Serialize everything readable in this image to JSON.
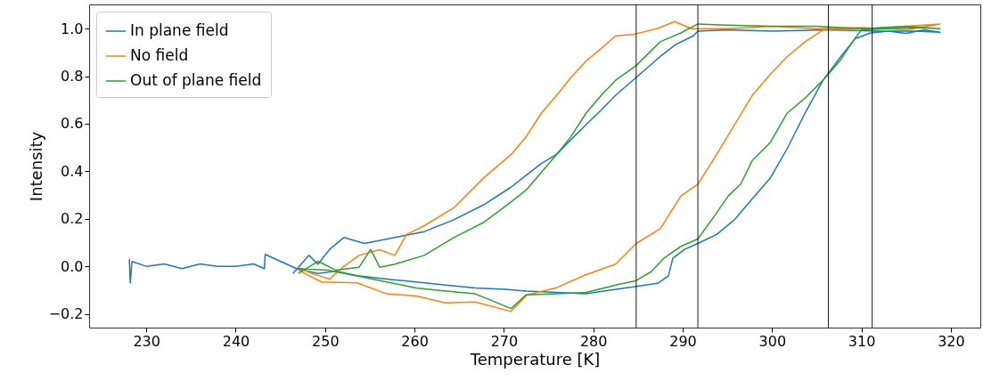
{
  "chart_data": {
    "type": "line",
    "xlabel": "Temperature [K]",
    "ylabel": "Intensity",
    "xlim": [
      223.6,
      323.3
    ],
    "ylim": [
      -0.258,
      1.102
    ],
    "xticks": [
      230,
      240,
      250,
      260,
      270,
      280,
      290,
      300,
      310,
      320
    ],
    "yticks": [
      {
        "value": -0.2,
        "label": "−0.2"
      },
      {
        "value": 0,
        "label": "0.0"
      },
      {
        "value": 0.2,
        "label": "0.2"
      },
      {
        "value": 0.4,
        "label": "0.4"
      },
      {
        "value": 0.6,
        "label": "0.6"
      },
      {
        "value": 0.8,
        "label": "0.8"
      },
      {
        "value": 1.0,
        "label": "1.0"
      }
    ],
    "grid": false,
    "legend": "top left",
    "line_style": "solid",
    "marker": "none",
    "ref_lines": [
      {
        "axis": "x",
        "value": 284.8,
        "color": "#000000"
      },
      {
        "axis": "x",
        "value": 291.7,
        "color": "#000000"
      },
      {
        "axis": "x",
        "value": 306.3,
        "color": "#000000"
      },
      {
        "axis": "x",
        "value": 311.2,
        "color": "#000000"
      }
    ],
    "series": [
      {
        "name": "In plane field",
        "color": "#1f77b4",
        "x": [
          228.1,
          228.2,
          228.4,
          230,
          232,
          234,
          236,
          238,
          240,
          242,
          243.2,
          243.3,
          246.8,
          249.2,
          251.2,
          253.6,
          256.9,
          260.2,
          263.5,
          266.8,
          270.1,
          272.5,
          275.9,
          279.2,
          282.5,
          284.8,
          287.2,
          288.4,
          288.9,
          290.2,
          291.7,
          293.8,
          295.8,
          297.8,
          299.8,
          301.7,
          303.7,
          305.7,
          307.7,
          309.3,
          311.0,
          313,
          315,
          317,
          318.8,
          316,
          312,
          306,
          300,
          295,
          291.7,
          291.2,
          289.2,
          287.5,
          284.8,
          282.5,
          280.9,
          279.2,
          277.5,
          275.9,
          274.2,
          272.5,
          270.8,
          267.7,
          264.4,
          261.1,
          257.8,
          254.4,
          252.1,
          250.5,
          249.2,
          248.2,
          246.4
        ],
        "values": [
          0.03,
          -0.07,
          0.02,
          0.0,
          0.01,
          -0.01,
          0.01,
          0.0,
          0.0,
          0.01,
          -0.01,
          0.05,
          -0.01,
          -0.03,
          -0.02,
          -0.04,
          -0.054,
          -0.066,
          -0.079,
          -0.091,
          -0.097,
          -0.104,
          -0.11,
          -0.116,
          -0.097,
          -0.085,
          -0.072,
          -0.041,
          0.034,
          0.071,
          0.096,
          0.134,
          0.196,
          0.284,
          0.371,
          0.496,
          0.645,
          0.783,
          0.883,
          0.958,
          0.982,
          0.99,
          0.98,
          0.995,
          0.985,
          0.99,
          0.99,
          0.995,
          0.99,
          0.995,
          0.99,
          0.97,
          0.933,
          0.883,
          0.795,
          0.72,
          0.658,
          0.596,
          0.533,
          0.471,
          0.433,
          0.383,
          0.333,
          0.258,
          0.196,
          0.146,
          0.121,
          0.096,
          0.121,
          0.071,
          0.009,
          0.046,
          -0.03
        ]
      },
      {
        "name": "No field",
        "color": "#ff7f0e",
        "x": [
          247.0,
          249.6,
          253.6,
          256.9,
          260.2,
          263.5,
          266.8,
          270.8,
          272.6,
          275.9,
          279.2,
          282.5,
          284.8,
          287.5,
          289.8,
          291.7,
          293.8,
          295.8,
          297.8,
          299.8,
          301.7,
          303.7,
          305.7,
          307.7,
          311,
          315,
          318.8,
          315,
          310,
          305,
          300,
          295,
          291,
          289.1,
          287.1,
          284.5,
          282.5,
          280.8,
          279.2,
          277.5,
          275.9,
          274.2,
          272.5,
          270.8,
          267.7,
          264.4,
          261.1,
          259.1,
          257.8,
          256.1,
          253.8,
          252.1,
          250.5,
          248.5,
          247.0
        ],
        "values": [
          -0.016,
          -0.066,
          -0.07,
          -0.116,
          -0.125,
          -0.154,
          -0.15,
          -0.19,
          -0.12,
          -0.09,
          -0.035,
          0.009,
          0.096,
          0.158,
          0.296,
          0.346,
          0.47,
          0.596,
          0.72,
          0.808,
          0.883,
          0.945,
          0.995,
          1.0,
          1.0,
          1.01,
          1.02,
          0.995,
          1.005,
          1.0,
          1.01,
          1.0,
          1.0,
          1.03,
          1.0,
          0.976,
          0.97,
          0.914,
          0.864,
          0.795,
          0.72,
          0.645,
          0.546,
          0.47,
          0.371,
          0.246,
          0.171,
          0.134,
          0.046,
          0.07,
          0.046,
          0.0,
          -0.054,
          -0.03,
          -0.005
        ]
      },
      {
        "name": "Out of plane field",
        "color": "#2ca02c",
        "x": [
          247.0,
          250.3,
          253.6,
          256.9,
          260.2,
          263.5,
          266.8,
          270.8,
          272.5,
          275.9,
          279.2,
          282.5,
          284.8,
          286.5,
          287.9,
          289.8,
          291.7,
          293.5,
          295.1,
          296.5,
          297.8,
          299.8,
          301.7,
          303.7,
          305.7,
          307.7,
          309.0,
          310.0,
          313,
          316,
          318.8,
          315,
          310,
          305,
          300,
          295,
          291.7,
          289.8,
          287.5,
          284.8,
          282.5,
          280.9,
          279.2,
          277.5,
          275.9,
          274.2,
          272.5,
          270.8,
          267.7,
          264.4,
          261.1,
          257.8,
          256.1,
          255.1,
          253.8,
          251.2,
          249.2,
          247.0
        ],
        "values": [
          -0.01,
          -0.016,
          -0.041,
          -0.066,
          -0.091,
          -0.104,
          -0.116,
          -0.178,
          -0.12,
          -0.116,
          -0.11,
          -0.079,
          -0.06,
          -0.022,
          0.034,
          0.084,
          0.115,
          0.209,
          0.296,
          0.346,
          0.446,
          0.521,
          0.645,
          0.708,
          0.783,
          0.87,
          0.945,
          0.995,
          1.0,
          1.005,
          1.0,
          1.01,
          1.0,
          1.01,
          1.01,
          1.015,
          1.02,
          0.982,
          0.945,
          0.845,
          0.783,
          0.72,
          0.645,
          0.546,
          0.471,
          0.396,
          0.321,
          0.271,
          0.184,
          0.121,
          0.046,
          0.009,
          -0.004,
          0.071,
          -0.004,
          -0.016,
          0.021,
          -0.03
        ]
      }
    ]
  }
}
